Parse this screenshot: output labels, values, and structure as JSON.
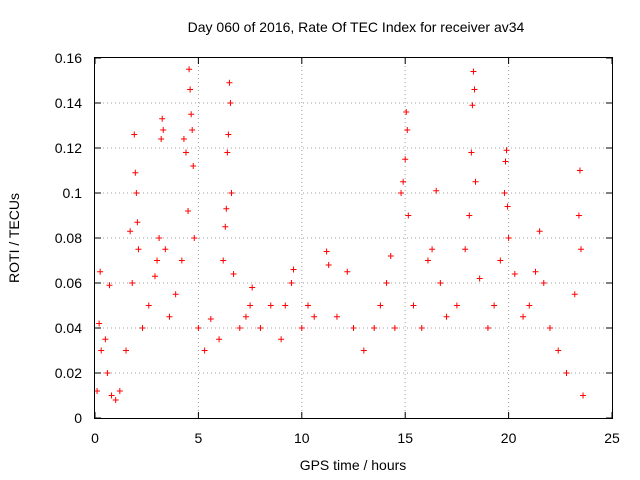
{
  "chart_data": {
    "type": "scatter",
    "title": "Day 060 of 2016, Rate Of TEC Index for receiver av34",
    "xlabel": "GPS time / hours",
    "ylabel": "ROTI / TECUs",
    "xlim": [
      0,
      25
    ],
    "ylim": [
      0,
      0.16
    ],
    "x_ticks": [
      "0",
      "5",
      "10",
      "15",
      "20",
      "25"
    ],
    "y_ticks": [
      "0",
      "0.02",
      "0.04",
      "0.06",
      "0.08",
      "0.1",
      "0.12",
      "0.14",
      "0.16"
    ],
    "grid": true,
    "marker": "+",
    "color": "#ff0000",
    "series": [
      {
        "points": [
          [
            0.1,
            0.012
          ],
          [
            0.2,
            0.042
          ],
          [
            0.25,
            0.065
          ],
          [
            0.3,
            0.03
          ],
          [
            0.5,
            0.035
          ],
          [
            0.6,
            0.02
          ],
          [
            0.7,
            0.059
          ],
          [
            0.8,
            0.01
          ],
          [
            1.0,
            0.008
          ],
          [
            1.2,
            0.012
          ],
          [
            1.5,
            0.03
          ],
          [
            1.7,
            0.083
          ],
          [
            1.8,
            0.06
          ],
          [
            1.9,
            0.126
          ],
          [
            1.95,
            0.109
          ],
          [
            2.0,
            0.1
          ],
          [
            2.05,
            0.087
          ],
          [
            2.1,
            0.075
          ],
          [
            2.3,
            0.04
          ],
          [
            2.6,
            0.05
          ],
          [
            2.9,
            0.063
          ],
          [
            3.0,
            0.07
          ],
          [
            3.1,
            0.08
          ],
          [
            3.2,
            0.124
          ],
          [
            3.25,
            0.133
          ],
          [
            3.3,
            0.128
          ],
          [
            3.4,
            0.075
          ],
          [
            3.6,
            0.045
          ],
          [
            3.9,
            0.055
          ],
          [
            4.2,
            0.07
          ],
          [
            4.3,
            0.124
          ],
          [
            4.4,
            0.118
          ],
          [
            4.5,
            0.092
          ],
          [
            4.55,
            0.155
          ],
          [
            4.6,
            0.146
          ],
          [
            4.65,
            0.135
          ],
          [
            4.7,
            0.128
          ],
          [
            4.75,
            0.112
          ],
          [
            4.8,
            0.08
          ],
          [
            5.0,
            0.04
          ],
          [
            5.3,
            0.03
          ],
          [
            5.6,
            0.044
          ],
          [
            6.0,
            0.035
          ],
          [
            6.2,
            0.07
          ],
          [
            6.3,
            0.085
          ],
          [
            6.35,
            0.093
          ],
          [
            6.4,
            0.118
          ],
          [
            6.45,
            0.126
          ],
          [
            6.5,
            0.149
          ],
          [
            6.55,
            0.14
          ],
          [
            6.6,
            0.1
          ],
          [
            6.7,
            0.064
          ],
          [
            7.0,
            0.04
          ],
          [
            7.3,
            0.045
          ],
          [
            7.5,
            0.05
          ],
          [
            7.6,
            0.058
          ],
          [
            8.0,
            0.04
          ],
          [
            8.5,
            0.05
          ],
          [
            9.0,
            0.035
          ],
          [
            9.2,
            0.05
          ],
          [
            9.5,
            0.06
          ],
          [
            9.6,
            0.066
          ],
          [
            10.0,
            0.04
          ],
          [
            10.3,
            0.05
          ],
          [
            10.6,
            0.045
          ],
          [
            11.2,
            0.074
          ],
          [
            11.3,
            0.068
          ],
          [
            11.7,
            0.045
          ],
          [
            12.2,
            0.065
          ],
          [
            12.5,
            0.04
          ],
          [
            13.0,
            0.03
          ],
          [
            13.5,
            0.04
          ],
          [
            13.8,
            0.05
          ],
          [
            14.1,
            0.06
          ],
          [
            14.3,
            0.072
          ],
          [
            14.5,
            0.04
          ],
          [
            14.8,
            0.1
          ],
          [
            14.9,
            0.105
          ],
          [
            15.0,
            0.115
          ],
          [
            15.05,
            0.136
          ],
          [
            15.1,
            0.128
          ],
          [
            15.15,
            0.09
          ],
          [
            15.4,
            0.05
          ],
          [
            15.8,
            0.04
          ],
          [
            16.1,
            0.07
          ],
          [
            16.3,
            0.075
          ],
          [
            16.5,
            0.101
          ],
          [
            16.7,
            0.06
          ],
          [
            17.0,
            0.045
          ],
          [
            17.5,
            0.05
          ],
          [
            17.9,
            0.075
          ],
          [
            18.1,
            0.09
          ],
          [
            18.2,
            0.118
          ],
          [
            18.25,
            0.139
          ],
          [
            18.3,
            0.154
          ],
          [
            18.35,
            0.146
          ],
          [
            18.4,
            0.105
          ],
          [
            18.6,
            0.062
          ],
          [
            19.0,
            0.04
          ],
          [
            19.3,
            0.05
          ],
          [
            19.6,
            0.07
          ],
          [
            19.8,
            0.1
          ],
          [
            19.85,
            0.114
          ],
          [
            19.9,
            0.119
          ],
          [
            19.95,
            0.094
          ],
          [
            20.0,
            0.08
          ],
          [
            20.3,
            0.064
          ],
          [
            20.7,
            0.045
          ],
          [
            21.0,
            0.05
          ],
          [
            21.3,
            0.065
          ],
          [
            21.5,
            0.083
          ],
          [
            21.7,
            0.06
          ],
          [
            22.0,
            0.04
          ],
          [
            22.4,
            0.03
          ],
          [
            22.8,
            0.02
          ],
          [
            23.2,
            0.055
          ],
          [
            23.4,
            0.09
          ],
          [
            23.45,
            0.11
          ],
          [
            23.5,
            0.075
          ],
          [
            23.6,
            0.01
          ]
        ]
      }
    ]
  }
}
